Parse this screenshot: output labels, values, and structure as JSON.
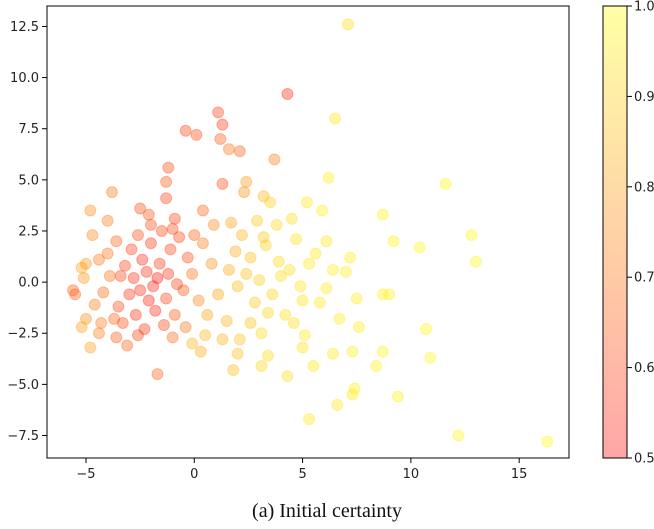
{
  "caption": "(a)  Initial certainty",
  "chart_data": {
    "type": "scatter",
    "title": "",
    "xlabel": "",
    "ylabel": "",
    "xlim": [
      -6.8,
      17.3
    ],
    "ylim": [
      -8.6,
      13.5
    ],
    "xticks": [
      -5,
      0,
      5,
      10,
      15
    ],
    "yticks": [
      -7.5,
      -5.0,
      -2.5,
      0.0,
      2.5,
      5.0,
      7.5,
      10.0,
      12.5
    ],
    "xtick_labels": [
      "−5",
      "0",
      "5",
      "10",
      "15"
    ],
    "ytick_labels": [
      "−7.5",
      "−5.0",
      "−2.5",
      "0.0",
      "2.5",
      "5.0",
      "7.5",
      "10.0",
      "12.5"
    ],
    "grid": false,
    "marker_alpha": 0.35,
    "colormap": {
      "name": "autumn",
      "low_color": "#ff0000",
      "high_color": "#ffff00",
      "range": [
        0.5,
        1.0
      ],
      "ticks": [
        0.5,
        0.6,
        0.7,
        0.8,
        0.9,
        1.0
      ],
      "tick_labels": [
        "0.5",
        "0.6",
        "0.7",
        "0.8",
        "0.9",
        "1.0"
      ]
    },
    "points": [
      {
        "x": 7.1,
        "y": 12.6,
        "c": 0.92
      },
      {
        "x": 4.3,
        "y": 9.2,
        "c": 0.55
      },
      {
        "x": 1.1,
        "y": 8.3,
        "c": 0.6
      },
      {
        "x": 1.3,
        "y": 7.7,
        "c": 0.58
      },
      {
        "x": 6.5,
        "y": 8.0,
        "c": 0.95
      },
      {
        "x": -0.4,
        "y": 7.4,
        "c": 0.6
      },
      {
        "x": 0.1,
        "y": 7.2,
        "c": 0.62
      },
      {
        "x": 1.2,
        "y": 7.0,
        "c": 0.65
      },
      {
        "x": 1.6,
        "y": 6.5,
        "c": 0.7
      },
      {
        "x": 2.1,
        "y": 6.4,
        "c": 0.66
      },
      {
        "x": 3.7,
        "y": 6.0,
        "c": 0.72
      },
      {
        "x": -1.2,
        "y": 5.6,
        "c": 0.62
      },
      {
        "x": 6.2,
        "y": 5.1,
        "c": 0.96
      },
      {
        "x": -1.3,
        "y": 4.9,
        "c": 0.64
      },
      {
        "x": 1.3,
        "y": 4.8,
        "c": 0.62
      },
      {
        "x": 2.4,
        "y": 4.9,
        "c": 0.78
      },
      {
        "x": 11.6,
        "y": 4.8,
        "c": 0.98
      },
      {
        "x": -3.8,
        "y": 4.4,
        "c": 0.7
      },
      {
        "x": 2.3,
        "y": 4.4,
        "c": 0.76
      },
      {
        "x": 3.2,
        "y": 4.2,
        "c": 0.85
      },
      {
        "x": 3.5,
        "y": 3.9,
        "c": 0.9
      },
      {
        "x": -1.3,
        "y": 4.1,
        "c": 0.6
      },
      {
        "x": -2.5,
        "y": 3.6,
        "c": 0.62
      },
      {
        "x": 0.4,
        "y": 3.5,
        "c": 0.66
      },
      {
        "x": 5.2,
        "y": 3.9,
        "c": 0.95
      },
      {
        "x": -4.8,
        "y": 3.5,
        "c": 0.75
      },
      {
        "x": 5.9,
        "y": 3.5,
        "c": 0.96
      },
      {
        "x": 8.7,
        "y": 3.3,
        "c": 0.97
      },
      {
        "x": 4.5,
        "y": 3.1,
        "c": 0.93
      },
      {
        "x": 2.9,
        "y": 3.0,
        "c": 0.88
      },
      {
        "x": 1.7,
        "y": 2.9,
        "c": 0.8
      },
      {
        "x": -0.9,
        "y": 3.1,
        "c": 0.6
      },
      {
        "x": -2.1,
        "y": 3.3,
        "c": 0.64
      },
      {
        "x": 12.8,
        "y": 2.3,
        "c": 0.98
      },
      {
        "x": 9.2,
        "y": 2.0,
        "c": 0.97
      },
      {
        "x": 10.4,
        "y": 1.7,
        "c": 0.98
      },
      {
        "x": 6.1,
        "y": 2.0,
        "c": 0.95
      },
      {
        "x": 4.7,
        "y": 2.1,
        "c": 0.94
      },
      {
        "x": 3.3,
        "y": 1.8,
        "c": 0.9
      },
      {
        "x": 7.2,
        "y": 1.2,
        "c": 0.96
      },
      {
        "x": 13.0,
        "y": 1.0,
        "c": 0.98
      },
      {
        "x": 5.3,
        "y": 0.9,
        "c": 0.95
      },
      {
        "x": 2.6,
        "y": 1.2,
        "c": 0.86
      },
      {
        "x": -5.0,
        "y": 0.9,
        "c": 0.78
      },
      {
        "x": -4.4,
        "y": 1.1,
        "c": 0.7
      },
      {
        "x": -5.2,
        "y": 0.7,
        "c": 0.8
      },
      {
        "x": 7.0,
        "y": 0.5,
        "c": 0.96
      },
      {
        "x": 4.0,
        "y": 0.3,
        "c": 0.93
      },
      {
        "x": 8.7,
        "y": -0.6,
        "c": 0.97
      },
      {
        "x": 9.0,
        "y": -0.6,
        "c": 0.97
      },
      {
        "x": -5.6,
        "y": -0.4,
        "c": 0.66
      },
      {
        "x": -5.5,
        "y": -0.6,
        "c": 0.66
      },
      {
        "x": 6.1,
        "y": -0.3,
        "c": 0.95
      },
      {
        "x": 7.5,
        "y": -0.8,
        "c": 0.96
      },
      {
        "x": 2.0,
        "y": -0.2,
        "c": 0.86
      },
      {
        "x": 3.6,
        "y": -0.6,
        "c": 0.9
      },
      {
        "x": 5.0,
        "y": -0.9,
        "c": 0.94
      },
      {
        "x": 10.7,
        "y": -2.3,
        "c": 0.98
      },
      {
        "x": 6.7,
        "y": -1.8,
        "c": 0.96
      },
      {
        "x": 7.6,
        "y": -2.2,
        "c": 0.96
      },
      {
        "x": 3.1,
        "y": -2.5,
        "c": 0.92
      },
      {
        "x": 4.6,
        "y": -2.0,
        "c": 0.93
      },
      {
        "x": 2.1,
        "y": -2.8,
        "c": 0.87
      },
      {
        "x": -5.0,
        "y": -1.8,
        "c": 0.75
      },
      {
        "x": -4.4,
        "y": -2.5,
        "c": 0.72
      },
      {
        "x": 0.5,
        "y": -2.6,
        "c": 0.85
      },
      {
        "x": -0.1,
        "y": -3.0,
        "c": 0.84
      },
      {
        "x": -1.0,
        "y": -2.7,
        "c": 0.68
      },
      {
        "x": -3.6,
        "y": -2.7,
        "c": 0.65
      },
      {
        "x": -4.8,
        "y": -3.2,
        "c": 0.8
      },
      {
        "x": -3.1,
        "y": -3.1,
        "c": 0.66
      },
      {
        "x": 8.7,
        "y": -3.4,
        "c": 0.97
      },
      {
        "x": 7.3,
        "y": -3.4,
        "c": 0.96
      },
      {
        "x": 6.4,
        "y": -3.5,
        "c": 0.95
      },
      {
        "x": 5.0,
        "y": -3.2,
        "c": 0.94
      },
      {
        "x": 3.4,
        "y": -3.6,
        "c": 0.92
      },
      {
        "x": 2.0,
        "y": -3.5,
        "c": 0.86
      },
      {
        "x": 0.3,
        "y": -3.4,
        "c": 0.82
      },
      {
        "x": 10.9,
        "y": -3.7,
        "c": 0.98
      },
      {
        "x": 5.5,
        "y": -4.1,
        "c": 0.95
      },
      {
        "x": 3.1,
        "y": -4.1,
        "c": 0.91
      },
      {
        "x": 1.8,
        "y": -4.3,
        "c": 0.86
      },
      {
        "x": 8.4,
        "y": -4.1,
        "c": 0.97
      },
      {
        "x": -1.7,
        "y": -4.5,
        "c": 0.66
      },
      {
        "x": 4.3,
        "y": -4.6,
        "c": 0.93
      },
      {
        "x": 7.4,
        "y": -5.2,
        "c": 0.96
      },
      {
        "x": 7.3,
        "y": -5.5,
        "c": 0.96
      },
      {
        "x": 9.4,
        "y": -5.6,
        "c": 0.97
      },
      {
        "x": 6.6,
        "y": -6.0,
        "c": 0.95
      },
      {
        "x": 5.3,
        "y": -6.7,
        "c": 0.95
      },
      {
        "x": 12.2,
        "y": -7.5,
        "c": 0.98
      },
      {
        "x": 16.3,
        "y": -7.8,
        "c": 0.99
      },
      {
        "x": -3.9,
        "y": 0.3,
        "c": 0.7
      },
      {
        "x": -4.2,
        "y": -0.5,
        "c": 0.68
      },
      {
        "x": -3.5,
        "y": -1.2,
        "c": 0.62
      },
      {
        "x": -3.2,
        "y": 0.8,
        "c": 0.6
      },
      {
        "x": -2.8,
        "y": 0.2,
        "c": 0.57
      },
      {
        "x": -2.5,
        "y": -0.4,
        "c": 0.55
      },
      {
        "x": -2.2,
        "y": 0.5,
        "c": 0.56
      },
      {
        "x": -1.9,
        "y": -0.2,
        "c": 0.54
      },
      {
        "x": -1.6,
        "y": 0.9,
        "c": 0.58
      },
      {
        "x": -1.3,
        "y": -0.8,
        "c": 0.6
      },
      {
        "x": -2.9,
        "y": 1.6,
        "c": 0.6
      },
      {
        "x": -2.6,
        "y": 2.3,
        "c": 0.62
      },
      {
        "x": -2.0,
        "y": 1.9,
        "c": 0.58
      },
      {
        "x": -1.5,
        "y": 2.5,
        "c": 0.61
      },
      {
        "x": -1.1,
        "y": 1.6,
        "c": 0.6
      },
      {
        "x": -0.7,
        "y": 2.2,
        "c": 0.6
      },
      {
        "x": -0.3,
        "y": 1.2,
        "c": 0.62
      },
      {
        "x": -3.6,
        "y": 2.0,
        "c": 0.66
      },
      {
        "x": -4.0,
        "y": 1.4,
        "c": 0.7
      },
      {
        "x": -3.3,
        "y": -2.0,
        "c": 0.62
      },
      {
        "x": -2.7,
        "y": -1.6,
        "c": 0.56
      },
      {
        "x": -2.3,
        "y": -2.3,
        "c": 0.58
      },
      {
        "x": -1.8,
        "y": -1.4,
        "c": 0.55
      },
      {
        "x": -1.4,
        "y": -2.1,
        "c": 0.6
      },
      {
        "x": -0.9,
        "y": -1.6,
        "c": 0.64
      },
      {
        "x": -0.5,
        "y": -0.4,
        "c": 0.64
      },
      {
        "x": -0.1,
        "y": 0.4,
        "c": 0.7
      },
      {
        "x": 0.4,
        "y": 1.9,
        "c": 0.72
      },
      {
        "x": 0.8,
        "y": 0.9,
        "c": 0.76
      },
      {
        "x": 1.1,
        "y": -0.6,
        "c": 0.8
      },
      {
        "x": 0.6,
        "y": -1.6,
        "c": 0.8
      },
      {
        "x": 1.5,
        "y": -1.9,
        "c": 0.84
      },
      {
        "x": 1.9,
        "y": 1.5,
        "c": 0.82
      },
      {
        "x": 2.4,
        "y": 0.4,
        "c": 0.86
      },
      {
        "x": 2.8,
        "y": -1.0,
        "c": 0.88
      },
      {
        "x": 3.2,
        "y": 2.2,
        "c": 0.88
      },
      {
        "x": 3.9,
        "y": 1.0,
        "c": 0.92
      },
      {
        "x": 4.2,
        "y": -1.6,
        "c": 0.93
      },
      {
        "x": 4.9,
        "y": -0.2,
        "c": 0.94
      },
      {
        "x": 5.6,
        "y": 1.4,
        "c": 0.95
      },
      {
        "x": -4.6,
        "y": -1.1,
        "c": 0.72
      },
      {
        "x": -5.1,
        "y": 0.2,
        "c": 0.78
      },
      {
        "x": -4.7,
        "y": 2.3,
        "c": 0.74
      },
      {
        "x": -3.0,
        "y": -0.6,
        "c": 0.58
      },
      {
        "x": -2.4,
        "y": 1.1,
        "c": 0.55
      },
      {
        "x": -1.7,
        "y": 0.2,
        "c": 0.52
      },
      {
        "x": -2.1,
        "y": -0.9,
        "c": 0.53
      },
      {
        "x": -1.2,
        "y": 0.4,
        "c": 0.57
      },
      {
        "x": -0.8,
        "y": -0.1,
        "c": 0.6
      },
      {
        "x": 0.2,
        "y": -0.9,
        "c": 0.74
      },
      {
        "x": 1.6,
        "y": 0.6,
        "c": 0.82
      },
      {
        "x": 2.2,
        "y": 2.3,
        "c": 0.84
      },
      {
        "x": 2.6,
        "y": -2.0,
        "c": 0.87
      },
      {
        "x": 3.0,
        "y": 0.1,
        "c": 0.9
      },
      {
        "x": 3.4,
        "y": -1.5,
        "c": 0.91
      },
      {
        "x": 3.8,
        "y": 2.8,
        "c": 0.92
      },
      {
        "x": 4.4,
        "y": 0.6,
        "c": 0.93
      },
      {
        "x": 5.1,
        "y": -2.6,
        "c": 0.95
      },
      {
        "x": 5.8,
        "y": -1.0,
        "c": 0.95
      },
      {
        "x": 6.4,
        "y": 0.6,
        "c": 0.96
      },
      {
        "x": -3.7,
        "y": -1.8,
        "c": 0.66
      },
      {
        "x": -3.4,
        "y": 0.3,
        "c": 0.6
      },
      {
        "x": -2.6,
        "y": -2.6,
        "c": 0.6
      },
      {
        "x": -2.0,
        "y": 2.8,
        "c": 0.62
      },
      {
        "x": -1.0,
        "y": 2.6,
        "c": 0.62
      },
      {
        "x": 0.0,
        "y": 2.3,
        "c": 0.66
      },
      {
        "x": 0.9,
        "y": 2.8,
        "c": 0.74
      },
      {
        "x": 1.3,
        "y": -2.8,
        "c": 0.84
      },
      {
        "x": -0.4,
        "y": -2.2,
        "c": 0.7
      },
      {
        "x": -4.3,
        "y": -2.0,
        "c": 0.72
      },
      {
        "x": -5.2,
        "y": -2.2,
        "c": 0.8
      },
      {
        "x": -4.0,
        "y": 3.0,
        "c": 0.72
      }
    ]
  }
}
